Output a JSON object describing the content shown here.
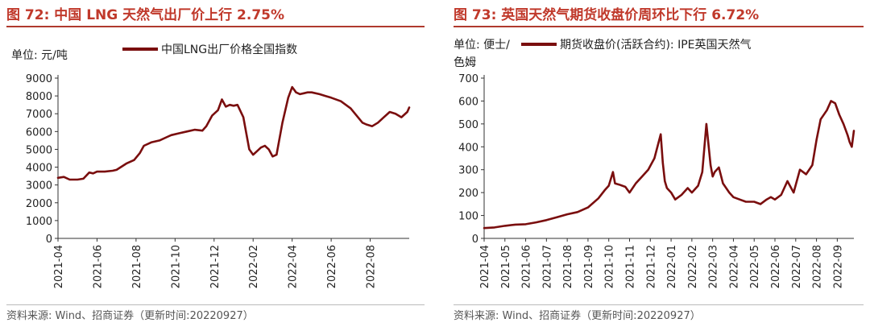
{
  "chart_data": [
    {
      "type": "line",
      "title": "图 72: 中国 LNG 天然气出厂价上行 2.75%",
      "unit_label": "单位: 元/吨",
      "legend": [
        "中国LNG出厂价格全国指数"
      ],
      "series_color": "#7a0e0e",
      "xlabel": "",
      "ylabel": "",
      "ylim": [
        0,
        9000
      ],
      "yticks": [
        0,
        1000,
        2000,
        3000,
        4000,
        5000,
        6000,
        7000,
        8000,
        9000
      ],
      "xticks": [
        "2021-04",
        "2021-06",
        "2021-08",
        "2021-10",
        "2021-12",
        "2022-02",
        "2022-04",
        "2022-06",
        "2022-08"
      ],
      "x_range": [
        0,
        18
      ],
      "series": [
        {
          "name": "中国LNG出厂价格全国指数",
          "x": [
            0,
            0.3,
            0.6,
            1.0,
            1.3,
            1.6,
            1.8,
            2.0,
            2.4,
            2.8,
            3.0,
            3.5,
            3.9,
            4.2,
            4.4,
            4.8,
            5.2,
            5.6,
            5.8,
            6.2,
            6.6,
            7.0,
            7.4,
            7.6,
            7.9,
            8.2,
            8.4,
            8.6,
            8.8,
            9.0,
            9.2,
            9.5,
            9.8,
            10.0,
            10.2,
            10.4,
            10.6,
            10.8,
            11.0,
            11.2,
            11.5,
            11.8,
            12.0,
            12.2,
            12.4,
            12.6,
            12.8,
            13.0,
            13.4,
            13.7,
            14.0,
            14.5,
            15.0,
            15.3,
            15.6,
            15.8,
            16.1,
            16.4,
            16.7,
            17.0,
            17.3,
            17.6,
            17.9,
            18.0
          ],
          "values": [
            3400,
            3450,
            3300,
            3300,
            3350,
            3700,
            3650,
            3750,
            3750,
            3800,
            3850,
            4200,
            4400,
            4800,
            5200,
            5400,
            5500,
            5700,
            5800,
            5900,
            6000,
            6100,
            6050,
            6300,
            6900,
            7200,
            7800,
            7400,
            7500,
            7450,
            7500,
            6800,
            5000,
            4700,
            4900,
            5100,
            5200,
            5000,
            4600,
            4700,
            6500,
            7900,
            8500,
            8200,
            8100,
            8150,
            8200,
            8200,
            8100,
            8000,
            7900,
            7700,
            7300,
            6900,
            6500,
            6400,
            6300,
            6500,
            6800,
            7100,
            7000,
            6800,
            7100,
            7350
          ]
        }
      ]
    },
    {
      "type": "line",
      "title": "图 73: 英国天然气期货收盘价周环比下行 6.72%",
      "unit_label": "单位: 便士/",
      "legend": [
        "期货收盘价(活跃合约): IPE英国天然气"
      ],
      "unit_label_2": "色姆",
      "series_color": "#7a0e0e",
      "xlabel": "",
      "ylabel": "",
      "ylim": [
        0,
        700
      ],
      "yticks": [
        0,
        100,
        200,
        300,
        400,
        500,
        600,
        700
      ],
      "xticks": [
        "2021-04",
        "2021-05",
        "2021-06",
        "2021-07",
        "2021-08",
        "2021-09",
        "2021-10",
        "2021-11",
        "2021-12",
        "2022-01",
        "2022-02",
        "2022-03",
        "2022-04",
        "2022-05",
        "2022-06",
        "2022-07",
        "2022-08",
        "2022-09"
      ],
      "x_range": [
        0,
        17.8
      ],
      "series": [
        {
          "name": "期货收盘价(活跃合约): IPE英国天然气",
          "x": [
            0,
            0.5,
            1.0,
            1.5,
            2.0,
            2.5,
            3.0,
            3.5,
            4.0,
            4.5,
            5.0,
            5.5,
            5.8,
            6.0,
            6.2,
            6.3,
            6.5,
            6.8,
            7.0,
            7.3,
            7.6,
            7.9,
            8.2,
            8.5,
            8.6,
            8.7,
            8.8,
            9.0,
            9.2,
            9.5,
            9.8,
            10.0,
            10.3,
            10.5,
            10.7,
            10.9,
            11.0,
            11.1,
            11.3,
            11.5,
            11.8,
            12.0,
            12.3,
            12.6,
            13.0,
            13.3,
            13.6,
            13.8,
            14.0,
            14.3,
            14.6,
            14.9,
            15.2,
            15.5,
            15.8,
            16.0,
            16.2,
            16.5,
            16.7,
            16.9,
            17.1,
            17.3,
            17.5,
            17.6,
            17.7,
            17.8
          ],
          "values": [
            45,
            48,
            55,
            60,
            62,
            70,
            80,
            92,
            105,
            115,
            135,
            175,
            210,
            230,
            290,
            240,
            235,
            225,
            200,
            240,
            270,
            300,
            350,
            455,
            330,
            250,
            220,
            200,
            170,
            190,
            220,
            200,
            230,
            290,
            500,
            320,
            270,
            290,
            310,
            240,
            200,
            180,
            170,
            160,
            160,
            150,
            170,
            180,
            170,
            190,
            250,
            200,
            300,
            280,
            320,
            430,
            520,
            560,
            600,
            590,
            540,
            500,
            450,
            420,
            400,
            470
          ]
        }
      ]
    }
  ],
  "sources": [
    "资料来源: Wind、招商证券（更新时间:20220927）",
    "资料来源: Wind、招商证券（更新时间:20220927）"
  ]
}
